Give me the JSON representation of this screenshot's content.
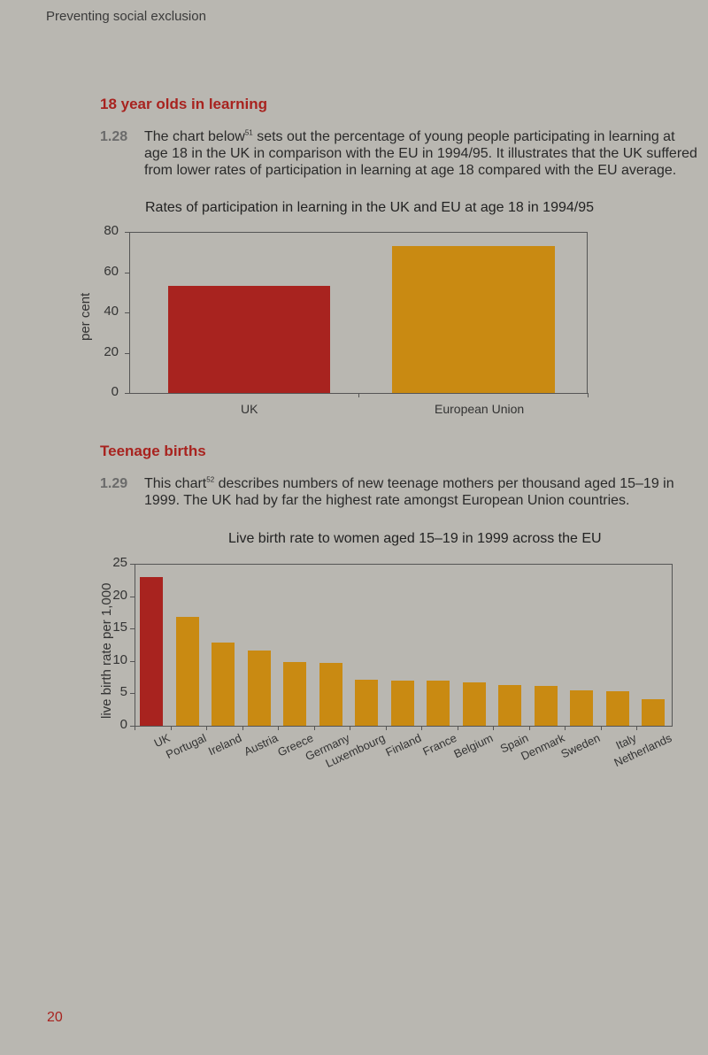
{
  "running_head": "Preventing social exclusion",
  "page_number": "20",
  "colors": {
    "uk": "#a8231f",
    "eu": "#c98a12",
    "heading": "#a8231f"
  },
  "section1": {
    "title": "18 year olds in learning",
    "para_num": "1.28",
    "para_text_before": "The chart below",
    "footnote": "51",
    "para_text_after": " sets out the percentage of young people participating in learning at age 18 in the UK in comparison with the EU in 1994/95. It illustrates that the UK suffered from lower rates of participation in learning at age 18 compared with the EU average."
  },
  "section2": {
    "title": "Teenage births",
    "para_num": "1.29",
    "para_text_before": "This chart",
    "footnote": "52",
    "para_text_after": " describes numbers of new teenage mothers per thousand aged 15–19 in 1999. The UK had by far the highest rate amongst European Union countries."
  },
  "chart_data": [
    {
      "type": "bar",
      "title": "Rates of participation in learning in the UK and EU at age 18 in 1994/95",
      "xlabel": "",
      "ylabel": "per cent",
      "categories": [
        "UK",
        "European Union"
      ],
      "values": [
        53,
        73
      ],
      "ylim": [
        0,
        80
      ],
      "yticks": [
        "0",
        "20",
        "40",
        "60",
        "80"
      ],
      "grid": false,
      "legend": "none"
    },
    {
      "type": "bar",
      "title": "Live birth rate to women aged 15–19 in 1999 across the EU",
      "xlabel": "",
      "ylabel": "live birth rate per 1,000",
      "categories": [
        "UK",
        "Portugal",
        "Ireland",
        "Austria",
        "Greece",
        "Germany",
        "Luxembourg",
        "Finland",
        "France",
        "Belgium",
        "Spain",
        "Denmark",
        "Sweden",
        "Italy",
        "Netherlands"
      ],
      "values": [
        23.0,
        16.8,
        12.9,
        11.6,
        9.9,
        9.7,
        7.1,
        7.0,
        6.9,
        6.7,
        6.3,
        6.2,
        5.5,
        5.3,
        4.1
      ],
      "ylim": [
        0,
        25
      ],
      "yticks": [
        "0",
        "5",
        "10",
        "15",
        "20",
        "25"
      ],
      "grid": false,
      "legend": "none"
    }
  ]
}
